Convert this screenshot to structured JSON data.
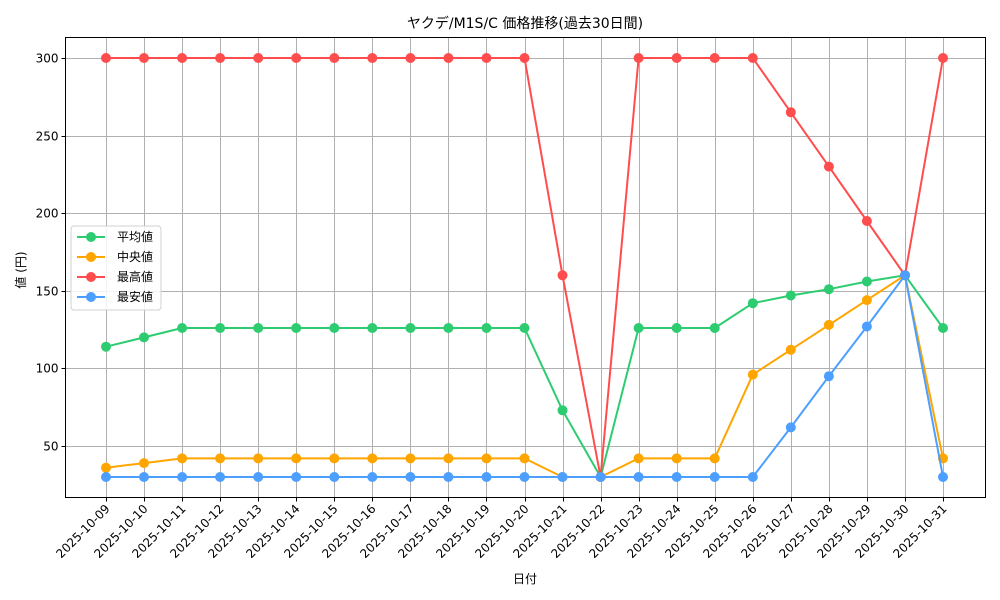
{
  "chart_data": {
    "type": "line",
    "title": "ヤクデ/M1S/C 価格推移(過去30日間)",
    "xlabel": "日付",
    "ylabel": "値 (円)",
    "ylim": [
      17,
      314
    ],
    "yticks": [
      50,
      100,
      150,
      200,
      250,
      300
    ],
    "grid": true,
    "legend_position": "center left",
    "categories": [
      "2025-10-09",
      "2025-10-10",
      "2025-10-11",
      "2025-10-12",
      "2025-10-13",
      "2025-10-14",
      "2025-10-15",
      "2025-10-16",
      "2025-10-17",
      "2025-10-18",
      "2025-10-19",
      "2025-10-20",
      "2025-10-21",
      "2025-10-22",
      "2025-10-23",
      "2025-10-24",
      "2025-10-25",
      "2025-10-26",
      "2025-10-27",
      "2025-10-28",
      "2025-10-29",
      "2025-10-30",
      "2025-10-31"
    ],
    "series": [
      {
        "name": "平均値",
        "color": "#2ecc71",
        "values": [
          114,
          120,
          126,
          126,
          126,
          126,
          126,
          126,
          126,
          126,
          126,
          126,
          73,
          30,
          126,
          126,
          126,
          142,
          147,
          151,
          156,
          160,
          126
        ]
      },
      {
        "name": "中央値",
        "color": "#ffa500",
        "values": [
          36,
          39,
          42,
          42,
          42,
          42,
          42,
          42,
          42,
          42,
          42,
          42,
          30,
          30,
          42,
          42,
          42,
          96,
          112,
          128,
          144,
          160,
          42
        ]
      },
      {
        "name": "最高値",
        "color": "#ff4d4d",
        "values": [
          300,
          300,
          300,
          300,
          300,
          300,
          300,
          300,
          300,
          300,
          300,
          300,
          160,
          30,
          300,
          300,
          300,
          300,
          265,
          230,
          195,
          160,
          300
        ]
      },
      {
        "name": "最安値",
        "color": "#4d9fff",
        "values": [
          30,
          30,
          30,
          30,
          30,
          30,
          30,
          30,
          30,
          30,
          30,
          30,
          30,
          30,
          30,
          30,
          30,
          30,
          62,
          95,
          127,
          160,
          30
        ]
      }
    ]
  }
}
